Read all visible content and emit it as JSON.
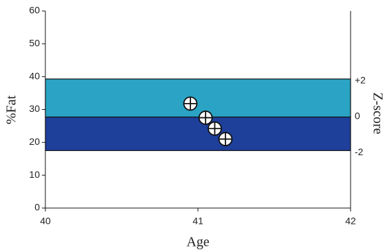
{
  "chart_data": {
    "type": "scatter",
    "x_label": "Age",
    "y_label": "%Fat",
    "y2_label": "Z-score",
    "xlim": [
      40,
      42
    ],
    "xticks": [
      40,
      41,
      42
    ],
    "ylim": [
      0,
      60
    ],
    "yticks": [
      0,
      10,
      20,
      30,
      40,
      50,
      60
    ],
    "y2lim": [
      -5.1,
      5.9
    ],
    "y2ticks": [
      {
        "value": 2,
        "label": "+2"
      },
      0,
      -2
    ],
    "bands": [
      {
        "from": 27.7,
        "to": 39.3,
        "color": "#2aa3c4"
      },
      {
        "from": 17.5,
        "to": 27.7,
        "color": "#1e3f9a"
      }
    ],
    "x": [
      40.95,
      41.05,
      41.11,
      41.18
    ],
    "values": [
      31.8,
      27.5,
      24.2,
      21.0
    ]
  }
}
